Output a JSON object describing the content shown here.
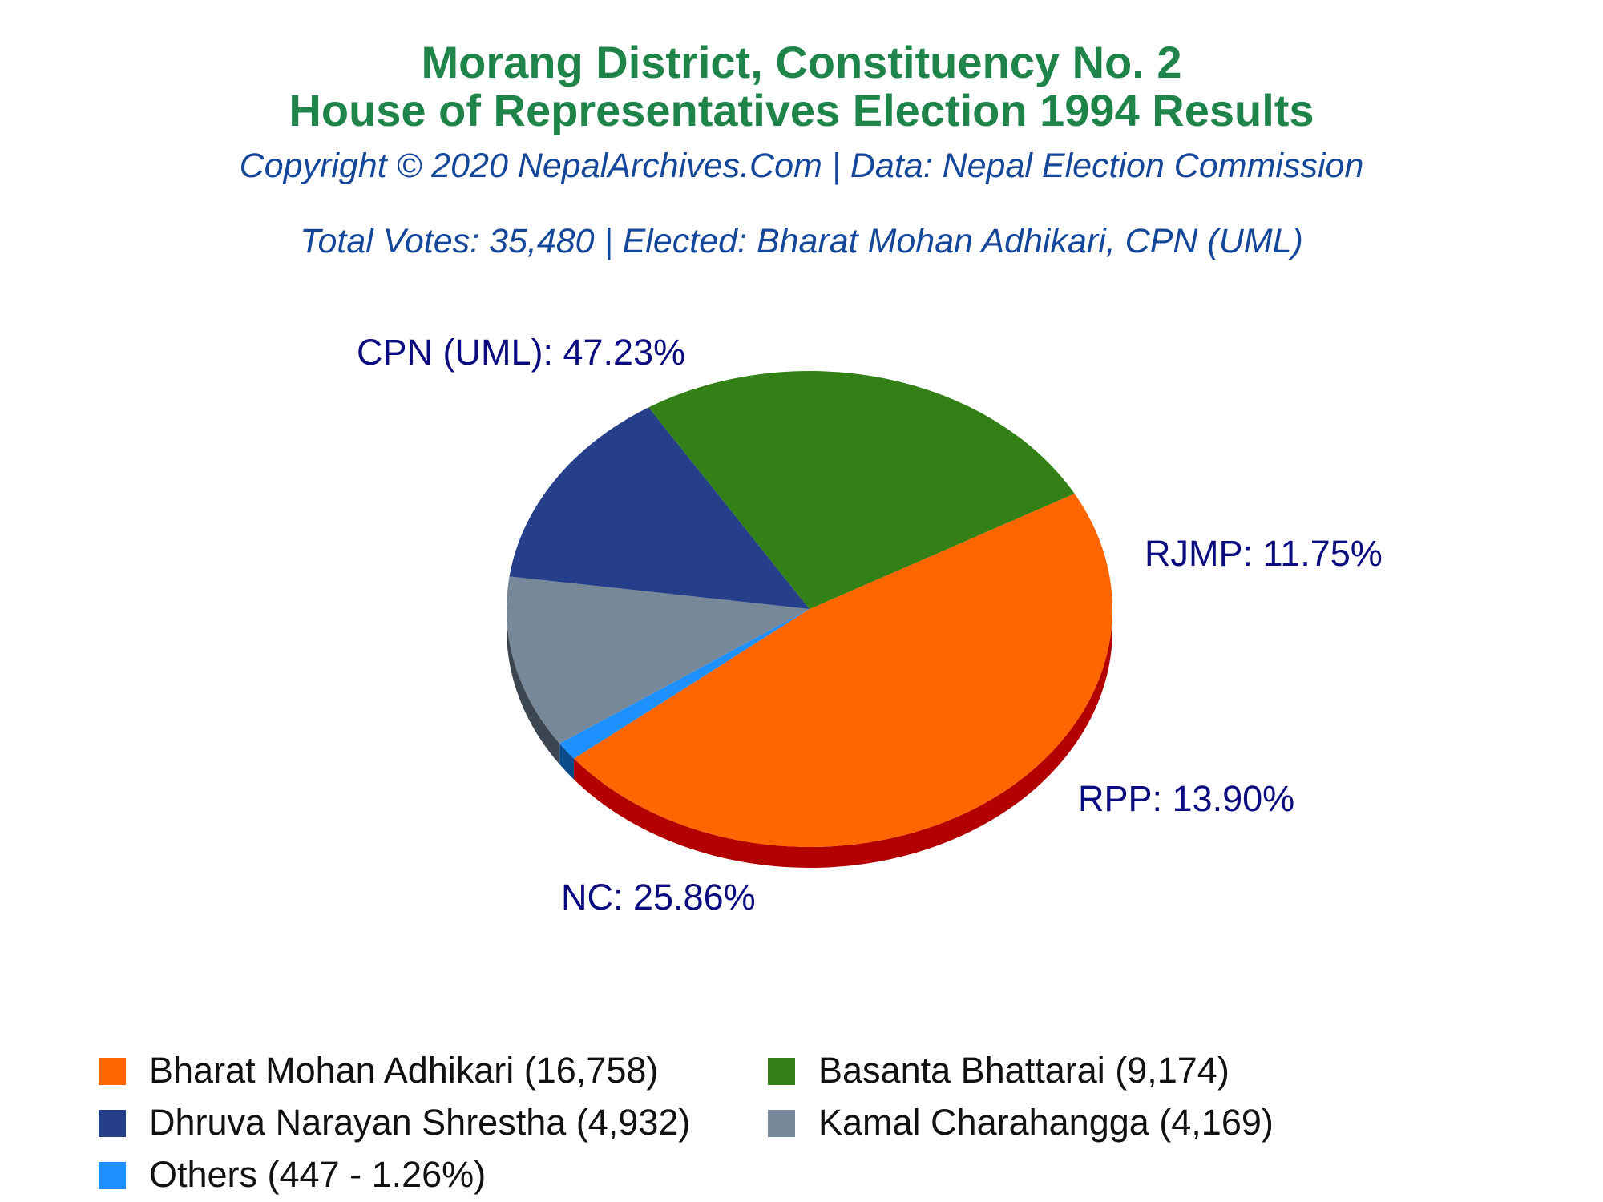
{
  "header": {
    "title_line1": "Morang District, Constituency No. 2",
    "title_line2": "House of Representatives Election 1994 Results",
    "copyright": "Copyright © 2020 NepalArchives.Com | Data: Nepal Election Commission",
    "summary": "Total Votes: 35,480 | Elected: Bharat Mohan Adhikari, CPN (UML)"
  },
  "chart_data": {
    "type": "pie",
    "style": "3d",
    "slices": [
      {
        "party": "CPN (UML)",
        "candidate": "Bharat Mohan Adhikari",
        "votes": 16758,
        "percent": 47.23,
        "label": "CPN (UML): 47.23%",
        "legend": "Bharat Mohan Adhikari (16,758)",
        "color": "#ff6600",
        "side_color": "#b30000"
      },
      {
        "party": "Others",
        "votes": 447,
        "percent": 1.26,
        "label": "",
        "legend": "Others (447 - 1.26%)",
        "color": "#1e90ff",
        "side_color": "#0a4a8a"
      },
      {
        "party": "RJMP",
        "candidate": "Kamal Charahangga",
        "votes": 4169,
        "percent": 11.75,
        "label": "RJMP: 11.75%",
        "legend": "Kamal Charahangga (4,169)",
        "color": "#778899",
        "side_color": "#3c4650"
      },
      {
        "party": "RPP",
        "candidate": "Dhruva Narayan Shrestha",
        "votes": 4932,
        "percent": 13.9,
        "label": "RPP: 13.90%",
        "legend": "Dhruva Narayan Shrestha (4,932)",
        "color": "#253f8a",
        "side_color": "#0a0f3a"
      },
      {
        "party": "NC",
        "candidate": "Basanta Bhattarai",
        "votes": 9174,
        "percent": 25.86,
        "label": "NC: 25.86%",
        "legend": "Basanta Bhattarai (9,174)",
        "color": "#338016",
        "side_color": "#0f2d05"
      }
    ],
    "legend_order": [
      0,
      4,
      3,
      2,
      1
    ],
    "label_color": "#0b0b80"
  }
}
